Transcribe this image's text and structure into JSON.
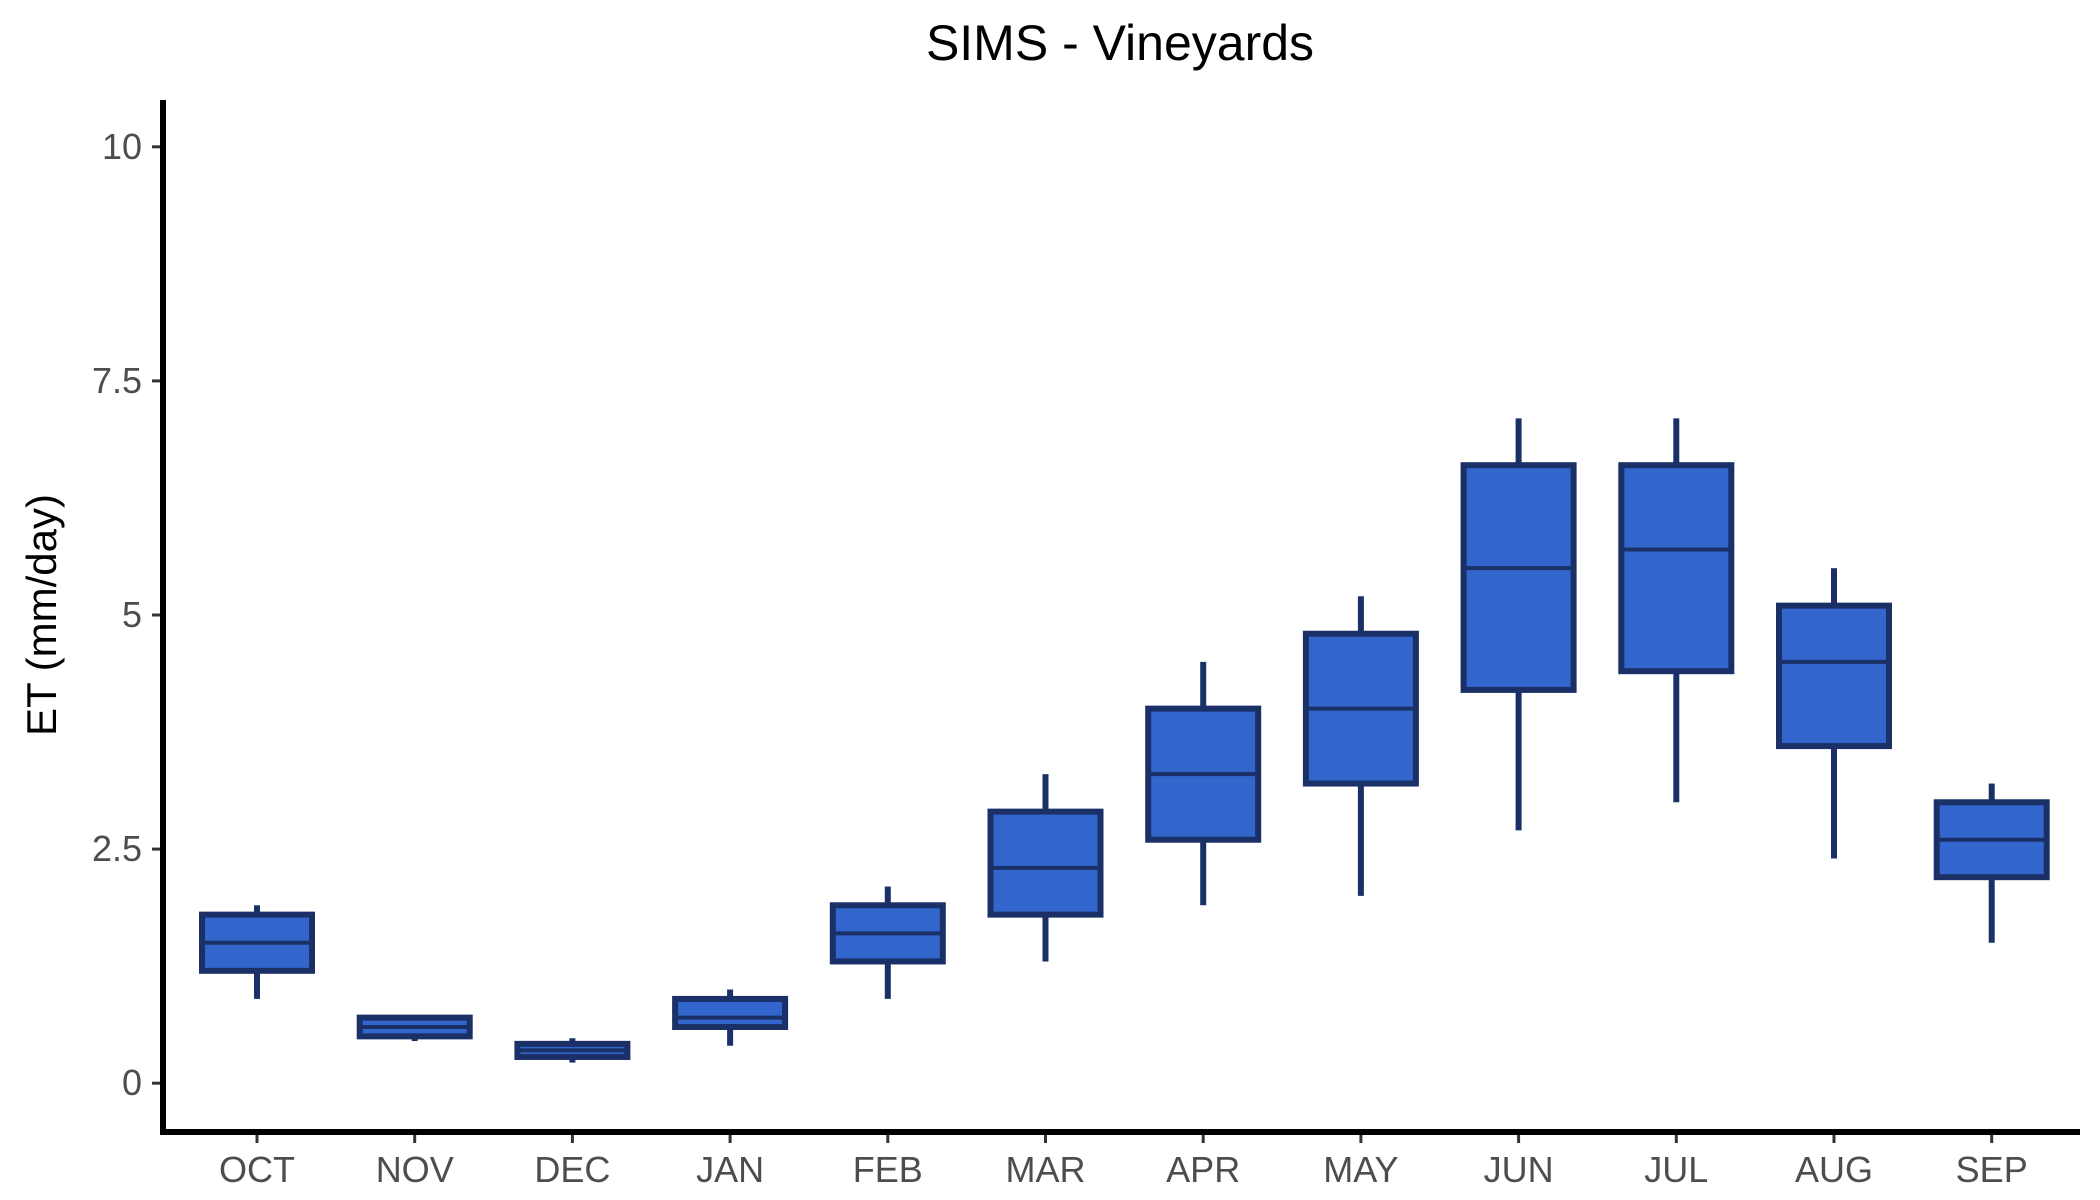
{
  "chart_data": {
    "type": "boxplot",
    "title": "SIMS - Vineyards",
    "xlabel": "",
    "ylabel": "ET (mm/day)",
    "ylim": [
      -0.5,
      10.5
    ],
    "yticks": [
      0,
      2.5,
      5,
      7.5,
      10
    ],
    "ytick_labels": [
      "0",
      "2.5",
      "5",
      "7.5",
      "10"
    ],
    "grid": false,
    "fill_color": "#3366cc",
    "line_color": "#1a3066",
    "categories": [
      "OCT",
      "NOV",
      "DEC",
      "JAN",
      "FEB",
      "MAR",
      "APR",
      "MAY",
      "JUN",
      "JUL",
      "AUG",
      "SEP"
    ],
    "boxes": [
      {
        "min": 0.9,
        "q1": 1.2,
        "median": 1.5,
        "q3": 1.8,
        "max": 1.9
      },
      {
        "min": 0.45,
        "q1": 0.5,
        "median": 0.6,
        "q3": 0.7,
        "max": 0.7
      },
      {
        "min": 0.22,
        "q1": 0.28,
        "median": 0.35,
        "q3": 0.42,
        "max": 0.48
      },
      {
        "min": 0.4,
        "q1": 0.6,
        "median": 0.7,
        "q3": 0.9,
        "max": 1.0
      },
      {
        "min": 0.9,
        "q1": 1.3,
        "median": 1.6,
        "q3": 1.9,
        "max": 2.1
      },
      {
        "min": 1.3,
        "q1": 1.8,
        "median": 2.3,
        "q3": 2.9,
        "max": 3.3
      },
      {
        "min": 1.9,
        "q1": 2.6,
        "median": 3.3,
        "q3": 4.0,
        "max": 4.5
      },
      {
        "min": 2.0,
        "q1": 3.2,
        "median": 4.0,
        "q3": 4.8,
        "max": 5.2
      },
      {
        "min": 2.7,
        "q1": 4.2,
        "median": 5.5,
        "q3": 6.6,
        "max": 7.1
      },
      {
        "min": 3.0,
        "q1": 4.4,
        "median": 5.7,
        "q3": 6.6,
        "max": 7.1
      },
      {
        "min": 2.4,
        "q1": 3.6,
        "median": 4.5,
        "q3": 5.1,
        "max": 5.5
      },
      {
        "min": 1.5,
        "q1": 2.2,
        "median": 2.6,
        "q3": 3.0,
        "max": 3.2
      }
    ]
  }
}
